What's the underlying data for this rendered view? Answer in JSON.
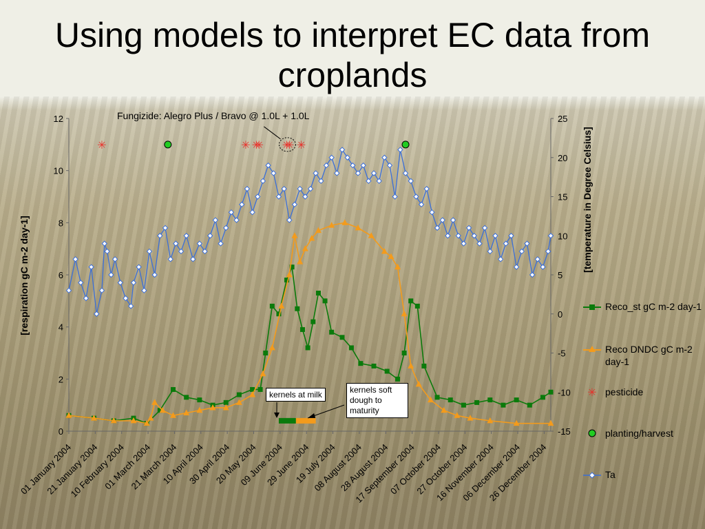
{
  "title": "Using models to interpret EC data from croplands",
  "annotation": "Fungizide: Alegro Plus / Bravo  @ 1.0L + 1.0L",
  "box_milk": "kernels at milk",
  "box_dough": "kernels soft dough to maturity",
  "chart_data": {
    "type": "line",
    "xlabel": "",
    "ylabel": "[respiration gC m-2 day-1]",
    "y2label": "[temperature in Degree Celsius]",
    "ylim": [
      0,
      12
    ],
    "y2lim": [
      -15,
      25
    ],
    "yticks": [
      "0",
      "2",
      "4",
      "6",
      "8",
      "10",
      "12"
    ],
    "y2ticks": [
      "-15",
      "-10",
      "-5",
      "0",
      "5",
      "10",
      "15",
      "20",
      "25"
    ],
    "x_tick_labels": [
      "01 January 2004",
      "21 January 2004",
      "10 February 2004",
      "01 March 2004",
      "21 March 2004",
      "10 April 2004",
      "30 April 2004",
      "20 May 2004",
      "09 June 2004",
      "29 June 2004",
      "19 July 2004",
      "08 August 2004",
      "28 August 2004",
      "17 September 2004",
      "07 October 2004",
      "27 October 2004",
      "16 November 2004",
      "06 December 2004",
      "26 December 2004"
    ],
    "x_ticks_doy": [
      1,
      21,
      41,
      61,
      81,
      101,
      121,
      141,
      161,
      181,
      201,
      221,
      241,
      261,
      281,
      301,
      321,
      341,
      361
    ],
    "xlim": [
      1,
      366
    ],
    "legend_position": "right",
    "series": [
      {
        "name": "Reco_st gC m-2 day-1",
        "axis": "left",
        "color": "#0b7a0b",
        "marker": "square",
        "points": [
          [
            1,
            0.6
          ],
          [
            20,
            0.5
          ],
          [
            35,
            0.4
          ],
          [
            50,
            0.5
          ],
          [
            60,
            0.3
          ],
          [
            70,
            0.8
          ],
          [
            80,
            1.6
          ],
          [
            90,
            1.3
          ],
          [
            100,
            1.2
          ],
          [
            110,
            1.0
          ],
          [
            120,
            1.1
          ],
          [
            130,
            1.4
          ],
          [
            140,
            1.6
          ],
          [
            146,
            1.6
          ],
          [
            150,
            3.0
          ],
          [
            155,
            4.8
          ],
          [
            160,
            4.5
          ],
          [
            166,
            5.8
          ],
          [
            170,
            6.3
          ],
          [
            174,
            4.7
          ],
          [
            178,
            3.9
          ],
          [
            182,
            3.2
          ],
          [
            186,
            4.2
          ],
          [
            190,
            5.3
          ],
          [
            195,
            5.0
          ],
          [
            200,
            3.8
          ],
          [
            208,
            3.6
          ],
          [
            215,
            3.2
          ],
          [
            222,
            2.6
          ],
          [
            232,
            2.5
          ],
          [
            242,
            2.3
          ],
          [
            250,
            2.0
          ],
          [
            255,
            3.0
          ],
          [
            260,
            5.0
          ],
          [
            265,
            4.8
          ],
          [
            270,
            2.5
          ],
          [
            280,
            1.3
          ],
          [
            290,
            1.2
          ],
          [
            300,
            1.0
          ],
          [
            310,
            1.1
          ],
          [
            320,
            1.2
          ],
          [
            330,
            1.0
          ],
          [
            340,
            1.2
          ],
          [
            350,
            1.0
          ],
          [
            360,
            1.3
          ],
          [
            366,
            1.5
          ]
        ]
      },
      {
        "name": "Reco DNDC gC m-2 day-1",
        "axis": "left",
        "color": "#f39b1c",
        "marker": "triangle",
        "points": [
          [
            1,
            0.6
          ],
          [
            20,
            0.5
          ],
          [
            35,
            0.4
          ],
          [
            50,
            0.4
          ],
          [
            60,
            0.3
          ],
          [
            63,
            0.5
          ],
          [
            66,
            1.1
          ],
          [
            72,
            0.8
          ],
          [
            80,
            0.6
          ],
          [
            90,
            0.7
          ],
          [
            100,
            0.8
          ],
          [
            110,
            0.9
          ],
          [
            120,
            0.9
          ],
          [
            130,
            1.1
          ],
          [
            140,
            1.4
          ],
          [
            148,
            2.2
          ],
          [
            155,
            3.2
          ],
          [
            162,
            4.8
          ],
          [
            168,
            6.0
          ],
          [
            172,
            7.5
          ],
          [
            176,
            6.5
          ],
          [
            180,
            7.0
          ],
          [
            185,
            7.4
          ],
          [
            190,
            7.7
          ],
          [
            200,
            7.9
          ],
          [
            210,
            8.0
          ],
          [
            220,
            7.8
          ],
          [
            230,
            7.5
          ],
          [
            240,
            6.9
          ],
          [
            245,
            6.7
          ],
          [
            250,
            6.3
          ],
          [
            255,
            4.5
          ],
          [
            260,
            2.5
          ],
          [
            266,
            1.8
          ],
          [
            275,
            1.2
          ],
          [
            285,
            0.8
          ],
          [
            295,
            0.6
          ],
          [
            305,
            0.5
          ],
          [
            320,
            0.4
          ],
          [
            340,
            0.3
          ],
          [
            366,
            0.3
          ]
        ]
      },
      {
        "name": "Ta",
        "axis": "right",
        "color": "#3b6fd8",
        "marker": "diamond",
        "points": [
          [
            1,
            3
          ],
          [
            6,
            7
          ],
          [
            10,
            4
          ],
          [
            14,
            2
          ],
          [
            18,
            6
          ],
          [
            22,
            0
          ],
          [
            26,
            3
          ],
          [
            28,
            9
          ],
          [
            30,
            8
          ],
          [
            33,
            5
          ],
          [
            36,
            7
          ],
          [
            40,
            4
          ],
          [
            44,
            2
          ],
          [
            48,
            1
          ],
          [
            50,
            4
          ],
          [
            54,
            6
          ],
          [
            58,
            3
          ],
          [
            62,
            8
          ],
          [
            66,
            5
          ],
          [
            70,
            10
          ],
          [
            74,
            11
          ],
          [
            78,
            7
          ],
          [
            82,
            9
          ],
          [
            86,
            8
          ],
          [
            90,
            10
          ],
          [
            95,
            7
          ],
          [
            100,
            9
          ],
          [
            104,
            8
          ],
          [
            108,
            10
          ],
          [
            112,
            12
          ],
          [
            116,
            9
          ],
          [
            120,
            11
          ],
          [
            124,
            13
          ],
          [
            128,
            12
          ],
          [
            132,
            14
          ],
          [
            136,
            16
          ],
          [
            140,
            13
          ],
          [
            144,
            15
          ],
          [
            148,
            17
          ],
          [
            152,
            19
          ],
          [
            156,
            18
          ],
          [
            160,
            15
          ],
          [
            164,
            16
          ],
          [
            168,
            12
          ],
          [
            172,
            14
          ],
          [
            176,
            16
          ],
          [
            180,
            15
          ],
          [
            184,
            16
          ],
          [
            188,
            18
          ],
          [
            192,
            17
          ],
          [
            196,
            19
          ],
          [
            200,
            20
          ],
          [
            204,
            18
          ],
          [
            208,
            21
          ],
          [
            212,
            20
          ],
          [
            216,
            19
          ],
          [
            220,
            18
          ],
          [
            224,
            19
          ],
          [
            228,
            17
          ],
          [
            232,
            18
          ],
          [
            236,
            17
          ],
          [
            240,
            20
          ],
          [
            244,
            19
          ],
          [
            248,
            15
          ],
          [
            252,
            21
          ],
          [
            256,
            18
          ],
          [
            260,
            17
          ],
          [
            264,
            15
          ],
          [
            268,
            14
          ],
          [
            272,
            16
          ],
          [
            276,
            13
          ],
          [
            280,
            11
          ],
          [
            284,
            12
          ],
          [
            288,
            10
          ],
          [
            292,
            12
          ],
          [
            296,
            10
          ],
          [
            300,
            9
          ],
          [
            304,
            11
          ],
          [
            308,
            10
          ],
          [
            312,
            9
          ],
          [
            316,
            11
          ],
          [
            320,
            8
          ],
          [
            324,
            10
          ],
          [
            328,
            7
          ],
          [
            332,
            9
          ],
          [
            336,
            10
          ],
          [
            340,
            6
          ],
          [
            344,
            8
          ],
          [
            348,
            9
          ],
          [
            352,
            5
          ],
          [
            356,
            7
          ],
          [
            360,
            6
          ],
          [
            364,
            8
          ],
          [
            366,
            10
          ]
        ]
      }
    ],
    "pesticide": {
      "name": "pesticide",
      "color": "#e8302a",
      "doy": [
        26,
        135,
        143,
        145,
        166,
        168,
        177
      ]
    },
    "planting_harvest": {
      "name": "planting/harvest",
      "color": "#22cc22",
      "doy": [
        76,
        256
      ]
    },
    "phase_bar": [
      {
        "from_doy": 160,
        "to_doy": 173,
        "color": "#0b7a0b"
      },
      {
        "from_doy": 173,
        "to_doy": 188,
        "color": "#f39b1c"
      }
    ]
  }
}
